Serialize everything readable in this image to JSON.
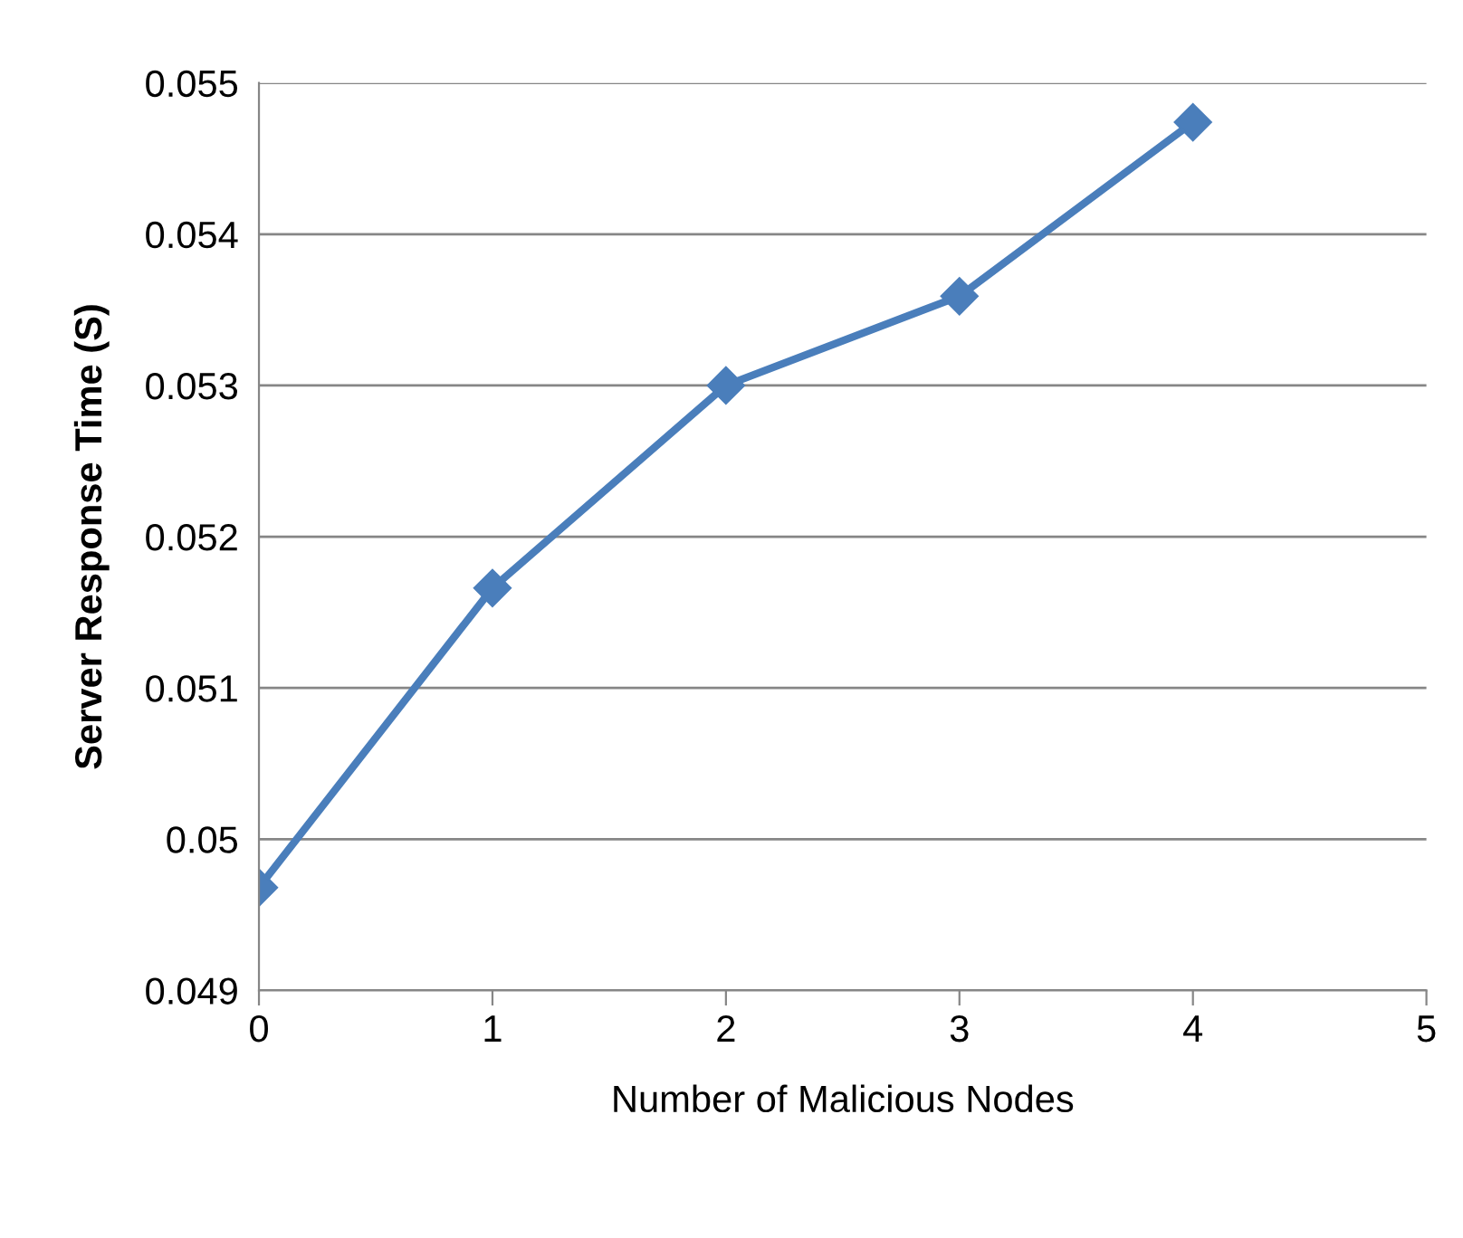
{
  "chart_data": {
    "type": "line",
    "xlabel": "Number of Malicious Nodes",
    "ylabel": "Server Response Time (S)",
    "x": [
      0,
      1,
      2,
      3,
      4
    ],
    "series": [
      {
        "color": "#4a7ebb",
        "values": [
          0.04968,
          0.05166,
          0.053,
          0.05359,
          0.05474
        ]
      }
    ],
    "xlim": [
      0,
      5
    ],
    "xticks": [
      0,
      1,
      2,
      3,
      4,
      5
    ],
    "ylim": [
      0.049,
      0.055
    ],
    "yticks": [
      0.049,
      0.05,
      0.051,
      0.052,
      0.053,
      0.054,
      0.055
    ],
    "grid": "y",
    "marker": "diamond",
    "line_style": "solid",
    "legend": false
  }
}
